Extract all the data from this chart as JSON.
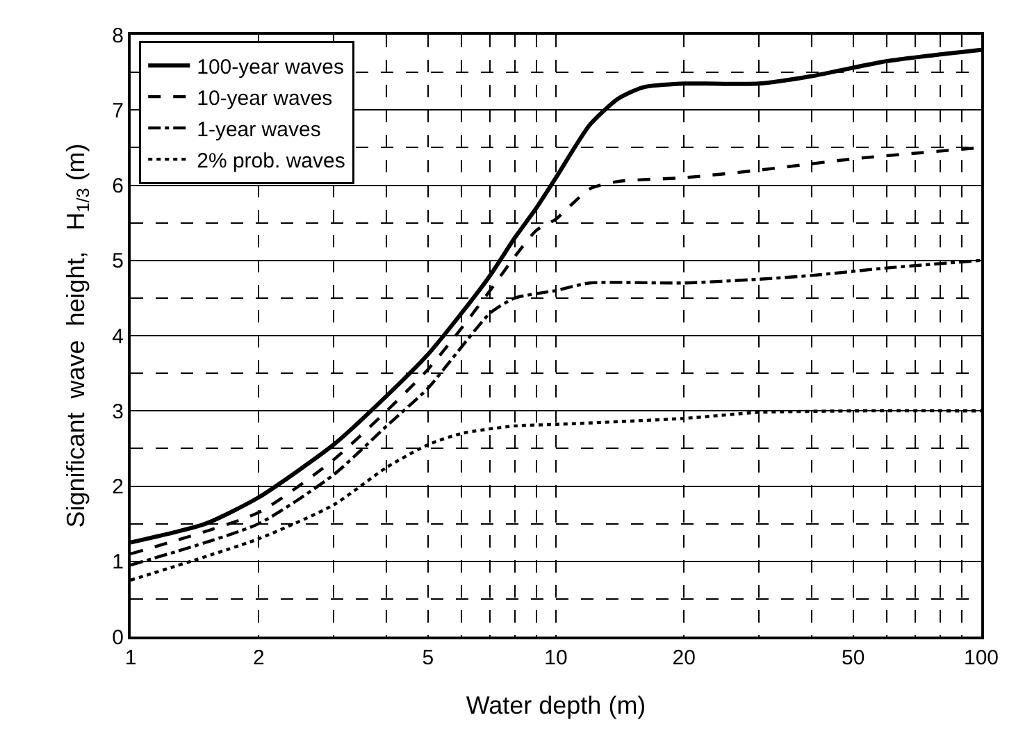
{
  "chart_data": {
    "type": "line",
    "xlabel": "Water depth (m)",
    "ylabel": "Significant  wave  height,   H$_{1/3}$ (m)",
    "log": "x",
    "xlim": [
      1,
      100
    ],
    "xticks": [
      1,
      2,
      5,
      10,
      20,
      50,
      100
    ],
    "ylim": [
      0,
      8
    ],
    "yticks": [
      0,
      1,
      2,
      3,
      4,
      5,
      6,
      7,
      8
    ],
    "grid": true,
    "legend": "top left",
    "marker": "none",
    "series": [
      {
        "name": "100-year waves",
        "color": "#000000",
        "line_style": "solid",
        "x": [
          1,
          1.5,
          2,
          3,
          4,
          5,
          6,
          7,
          8,
          9,
          10,
          12,
          14,
          16,
          20,
          30,
          40,
          60,
          100
        ],
        "values": [
          1.25,
          1.5,
          1.85,
          2.55,
          3.2,
          3.75,
          4.3,
          4.8,
          5.3,
          5.7,
          6.1,
          6.8,
          7.15,
          7.3,
          7.35,
          7.35,
          7.45,
          7.65,
          7.8
        ]
      },
      {
        "name": "10-year waves",
        "color": "#000000",
        "line_style": "dashed",
        "x": [
          1,
          2,
          3,
          4,
          5,
          6,
          7,
          8,
          9,
          10,
          12,
          14,
          20,
          30,
          50,
          100
        ],
        "values": [
          1.1,
          1.65,
          2.35,
          3.0,
          3.55,
          4.1,
          4.6,
          5.05,
          5.4,
          5.55,
          5.95,
          6.05,
          6.1,
          6.2,
          6.35,
          6.5
        ]
      },
      {
        "name": "1-year waves",
        "color": "#000000",
        "line_style": "dashdot",
        "x": [
          1,
          2,
          3,
          4,
          5,
          6,
          7,
          8,
          10,
          12,
          20,
          30,
          40,
          60,
          100
        ],
        "values": [
          0.95,
          1.5,
          2.15,
          2.8,
          3.3,
          3.85,
          4.3,
          4.5,
          4.6,
          4.7,
          4.7,
          4.75,
          4.8,
          4.9,
          5.0
        ]
      },
      {
        "name": "2% prob. waves",
        "color": "#000000",
        "line_style": "dotted",
        "x": [
          1,
          2,
          3,
          4,
          5,
          6,
          8,
          10,
          20,
          30,
          50,
          100
        ],
        "values": [
          0.75,
          1.3,
          1.75,
          2.25,
          2.55,
          2.7,
          2.8,
          2.82,
          2.9,
          2.98,
          3.0,
          3.0
        ]
      }
    ]
  }
}
